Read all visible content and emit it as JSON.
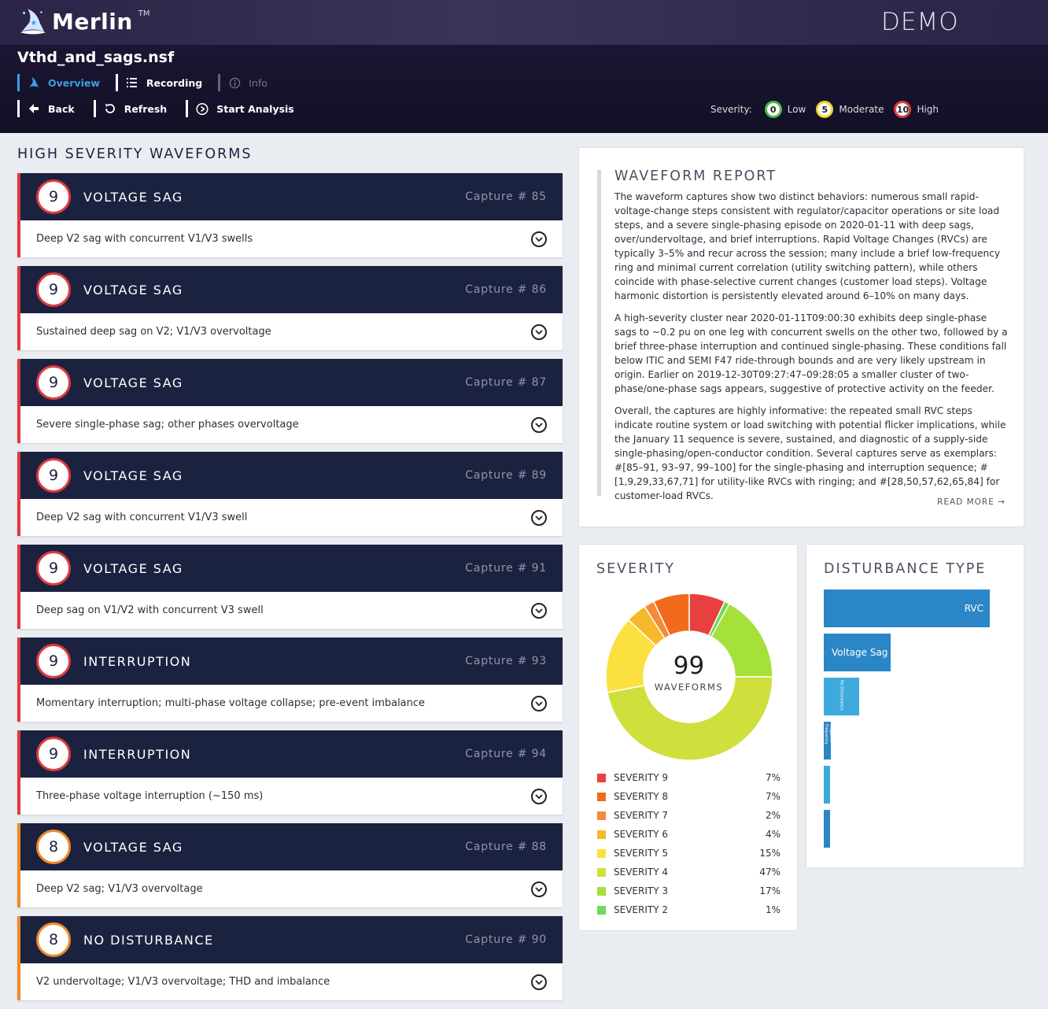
{
  "header": {
    "logo_text": "Merlin",
    "logo_tm": "TM",
    "demo_label": "DEMO",
    "filename": "Vthd_and_sags.nsf",
    "nav": [
      {
        "label": "Overview",
        "icon": "wizard-hat-icon",
        "state": "active"
      },
      {
        "label": "Recording",
        "icon": "list-icon",
        "state": "normal"
      },
      {
        "label": "Info",
        "icon": "info-icon",
        "state": "disabled"
      }
    ],
    "actions": [
      {
        "label": "Back",
        "icon": "arrow-left-icon"
      },
      {
        "label": "Refresh",
        "icon": "refresh-icon"
      },
      {
        "label": "Start Analysis",
        "icon": "play-circle-icon"
      }
    ],
    "severity_legend": {
      "label": "Severity:",
      "items": [
        {
          "value": "0",
          "text": "Low",
          "color": "#4cbb4c"
        },
        {
          "value": "5",
          "text": "Moderate",
          "color": "#f2d22e"
        },
        {
          "value": "10",
          "text": "High",
          "color": "#e0393e"
        }
      ]
    }
  },
  "waveforms": {
    "title": "HIGH SEVERITY WAVEFORMS",
    "items": [
      {
        "severity": "9",
        "type": "VOLTAGE SAG",
        "capture": "Capture # 85",
        "description": "Deep V2 sag with concurrent V1/V3 swells"
      },
      {
        "severity": "9",
        "type": "VOLTAGE SAG",
        "capture": "Capture # 86",
        "description": "Sustained deep sag on V2; V1/V3 overvoltage"
      },
      {
        "severity": "9",
        "type": "VOLTAGE SAG",
        "capture": "Capture # 87",
        "description": "Severe single-phase sag; other phases overvoltage"
      },
      {
        "severity": "9",
        "type": "VOLTAGE SAG",
        "capture": "Capture # 89",
        "description": "Deep V2 sag with concurrent V1/V3 swell"
      },
      {
        "severity": "9",
        "type": "VOLTAGE SAG",
        "capture": "Capture # 91",
        "description": "Deep sag on V1/V2 with concurrent V3 swell"
      },
      {
        "severity": "9",
        "type": "INTERRUPTION",
        "capture": "Capture # 93",
        "description": "Momentary interruption; multi-phase voltage collapse; pre-event imbalance"
      },
      {
        "severity": "9",
        "type": "INTERRUPTION",
        "capture": "Capture # 94",
        "description": "Three-phase voltage interruption (~150 ms)"
      },
      {
        "severity": "8",
        "type": "VOLTAGE SAG",
        "capture": "Capture # 88",
        "description": "Deep V2 sag; V1/V3 overvoltage"
      },
      {
        "severity": "8",
        "type": "NO DISTURBANCE",
        "capture": "Capture # 90",
        "description": "V2 undervoltage; V1/V3 overvoltage; THD and imbalance"
      }
    ]
  },
  "report": {
    "title": "WAVEFORM REPORT",
    "paragraphs": [
      "The waveform captures show two distinct behaviors: numerous small rapid-voltage-change steps consistent with regulator/capacitor operations or site load steps, and a severe single-phasing episode on 2020-01-11 with deep sags, over/undervoltage, and brief interruptions. Rapid Voltage Changes (RVCs) are typically 3–5% and recur across the session; many include a brief low-frequency ring and minimal current correlation (utility switching pattern), while others coincide with phase-selective current changes (customer load steps). Voltage harmonic distortion is persistently elevated around 6–10% on many days.",
      "A high-severity cluster near 2020-01-11T09:00:30 exhibits deep single-phase sags to ~0.2 pu on one leg with concurrent swells on the other two, followed by a brief three-phase interruption and continued single-phasing. These conditions fall below ITIC and SEMI F47 ride-through bounds and are very likely upstream in origin. Earlier on 2019-12-30T09:27:47–09:28:05 a smaller cluster of two-phase/one-phase sags appears, suggestive of protective activity on the feeder.",
      "Overall, the captures are highly informative: the repeated small RVC steps indicate routine system or load switching with potential flicker implications, while the January 11 sequence is severe, sustained, and diagnostic of a supply-side single-phasing/open-conductor condition. Several captures serve as exemplars: #[85–91, 93–97, 99–100] for the single-phasing and interruption sequence; #[1,9,29,33,67,71] for utility-like RVCs with ringing; and #[28,50,57,62,65,84] for customer-load RVCs."
    ],
    "read_more": "READ MORE →"
  },
  "severity_panel": {
    "title": "SEVERITY",
    "total": "99",
    "total_label": "WAVEFORMS"
  },
  "disturbance_panel": {
    "title": "DISTURBANCE TYPE"
  },
  "chart_data": [
    {
      "type": "pie",
      "title": "SEVERITY",
      "labels": [
        "SEVERITY 9",
        "SEVERITY 8",
        "SEVERITY 7",
        "SEVERITY 6",
        "SEVERITY 5",
        "SEVERITY 4",
        "SEVERITY 3",
        "SEVERITY 2"
      ],
      "values": [
        7,
        7,
        2,
        4,
        15,
        47,
        17,
        1
      ],
      "display": [
        "7%",
        "7%",
        "2%",
        "4%",
        "15%",
        "47%",
        "17%",
        "1%"
      ],
      "colors": [
        "#e8403f",
        "#f26b1d",
        "#f5893a",
        "#f6b92a",
        "#fbe040",
        "#cfe03c",
        "#a6e03a",
        "#6fd95a"
      ],
      "draw_order_clockwise_from_top": [
        "SEVERITY 9",
        "SEVERITY 2",
        "SEVERITY 3",
        "SEVERITY 4",
        "SEVERITY 5",
        "SEVERITY 6",
        "SEVERITY 7",
        "SEVERITY 8"
      ]
    },
    {
      "type": "bar",
      "title": "DISTURBANCE TYPE",
      "orientation": "horizontal",
      "categories": [
        "RVC",
        "Voltage Sag",
        "No Disturbance",
        "Negative Frequency",
        "",
        ""
      ],
      "values": [
        47,
        19,
        10,
        2,
        1,
        1
      ],
      "colors": [
        "#2a86c6",
        "#2a86c6",
        "#3ea9dc",
        "#2a86c6",
        "#3ea9dc",
        "#2a86c6"
      ]
    }
  ]
}
